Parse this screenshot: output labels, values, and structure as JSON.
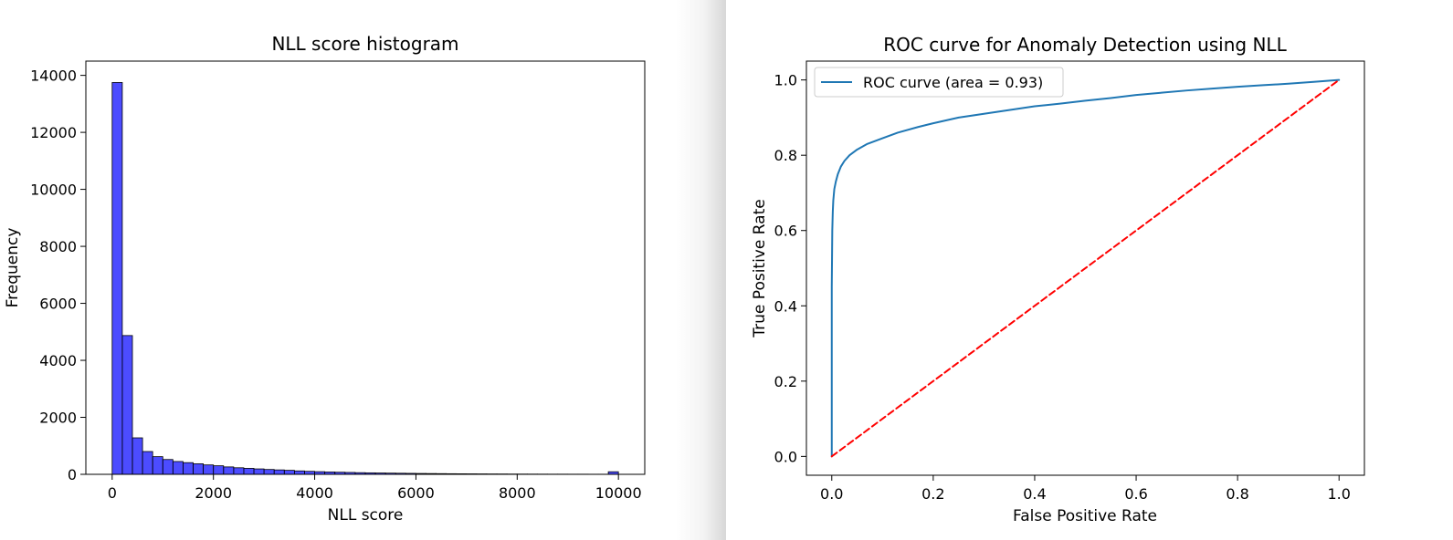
{
  "chart_data": [
    {
      "type": "bar",
      "title": "NLL score histogram",
      "xlabel": "NLL score",
      "ylabel": "Frequency",
      "xlim": [
        -520,
        10520
      ],
      "ylim": [
        0,
        14500
      ],
      "xticks": [
        0,
        2000,
        4000,
        6000,
        8000,
        10000
      ],
      "yticks": [
        0,
        2000,
        4000,
        6000,
        8000,
        10000,
        12000,
        14000
      ],
      "bar_color": "#0000ff",
      "bar_alpha": 0.7,
      "bar_edge_color": "#000000",
      "grid": false,
      "bin_width": 200,
      "bin_start": 0,
      "values": [
        13750,
        4870,
        1280,
        800,
        620,
        520,
        450,
        410,
        370,
        330,
        300,
        260,
        230,
        210,
        190,
        170,
        155,
        140,
        120,
        105,
        92,
        82,
        74,
        66,
        58,
        52,
        47,
        42,
        38,
        34,
        30,
        27,
        24,
        21,
        19,
        17,
        15,
        13,
        12,
        10,
        9,
        8,
        7,
        6,
        6,
        5,
        5,
        4,
        4,
        90
      ]
    },
    {
      "type": "line",
      "title": "ROC curve for Anomaly Detection using NLL",
      "xlabel": "False Positive Rate",
      "ylabel": "True Positive Rate",
      "xlim": [
        -0.05,
        1.05
      ],
      "ylim": [
        -0.05,
        1.05
      ],
      "xticks": [
        0.0,
        0.2,
        0.4,
        0.6,
        0.8,
        1.0
      ],
      "yticks": [
        0.0,
        0.2,
        0.4,
        0.6,
        0.8,
        1.0
      ],
      "grid": false,
      "legend_position": "top-left",
      "series": [
        {
          "name": "ROC curve (area = 0.93)",
          "color": "#1f77b4",
          "style": "solid",
          "x": [
            0.0,
            0.0,
            0.001,
            0.002,
            0.003,
            0.005,
            0.008,
            0.012,
            0.018,
            0.025,
            0.035,
            0.05,
            0.07,
            0.1,
            0.13,
            0.17,
            0.2,
            0.25,
            0.3,
            0.35,
            0.4,
            0.45,
            0.5,
            0.55,
            0.6,
            0.65,
            0.7,
            0.75,
            0.8,
            0.85,
            0.9,
            0.95,
            1.0
          ],
          "y": [
            0.0,
            0.45,
            0.6,
            0.65,
            0.68,
            0.71,
            0.73,
            0.75,
            0.77,
            0.785,
            0.8,
            0.815,
            0.83,
            0.845,
            0.86,
            0.875,
            0.885,
            0.9,
            0.91,
            0.92,
            0.93,
            0.937,
            0.945,
            0.952,
            0.96,
            0.966,
            0.972,
            0.977,
            0.982,
            0.986,
            0.99,
            0.995,
            1.0
          ]
        },
        {
          "name": "",
          "color": "#ff0000",
          "style": "dashed",
          "x": [
            0.0,
            1.0
          ],
          "y": [
            0.0,
            1.0
          ]
        }
      ]
    }
  ]
}
